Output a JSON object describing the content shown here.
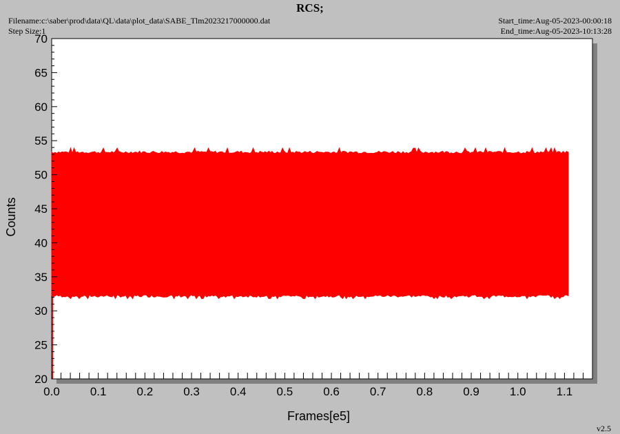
{
  "header": {
    "title": "RCS;",
    "filename": "Filename:c:\\saber\\prod\\data\\QL\\data\\plot_data\\SABE_Tlm2023217000000.dat",
    "step_size": "Step Size:1",
    "start_time": "Start_time:Aug-05-2023-00:00:18",
    "end_time": "End_time:Aug-05-2023-10:13:28"
  },
  "footer": {
    "version": "v2.5"
  },
  "chart_data": {
    "type": "area",
    "title": "RCS;",
    "xlabel": "Frames[e5]",
    "ylabel": "Counts",
    "xlim": [
      0.0,
      1.16
    ],
    "ylim": [
      20,
      70
    ],
    "x_ticks": [
      "0.0",
      "0.1",
      "0.2",
      "0.3",
      "0.4",
      "0.5",
      "0.6",
      "0.7",
      "0.8",
      "0.9",
      "1.0",
      "1.1"
    ],
    "y_ticks": [
      "20",
      "25",
      "30",
      "35",
      "40",
      "45",
      "50",
      "55",
      "60",
      "65",
      "70"
    ],
    "grid": false,
    "series": [
      {
        "x_range": [
          0.0,
          1.11
        ],
        "y_min": 32.2,
        "y_max": 53.3,
        "y_spikes_min": 31.8,
        "y_spikes_max": 53.9,
        "initial_y_min": 20.0,
        "color": "#ff0000"
      }
    ],
    "colors": {
      "background": "#c0c0c0",
      "plot_area": "#ffffff",
      "shadow": "#808080",
      "data": "#ff0000"
    }
  }
}
